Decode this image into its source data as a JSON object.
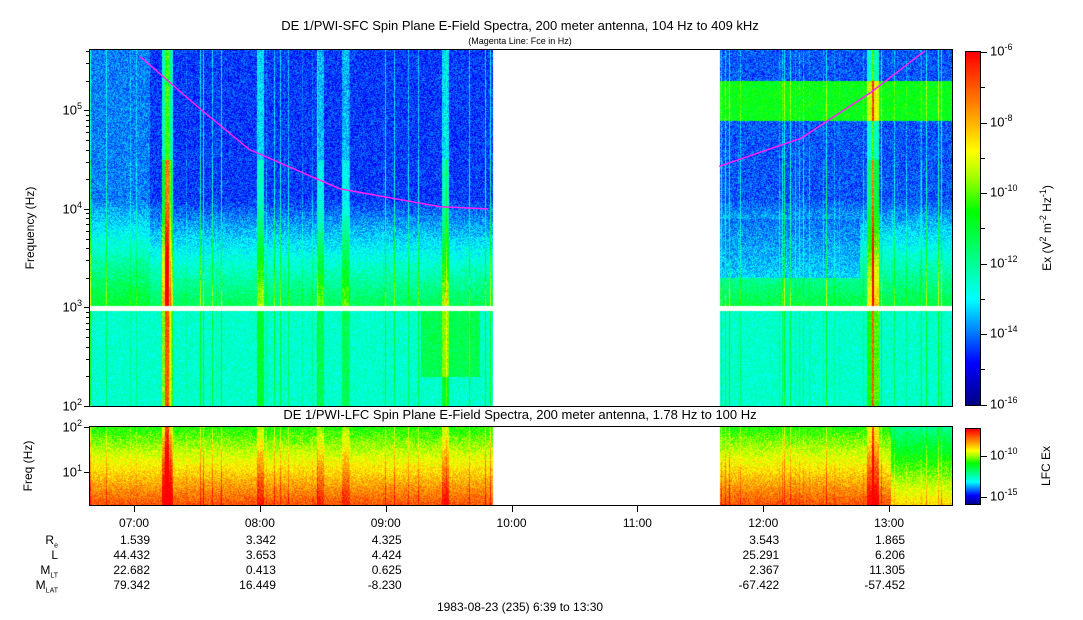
{
  "chart_data": [
    {
      "type": "heatmap",
      "title": "DE 1/PWI-SFC  Spin Plane E-Field Spectra, 200 meter antenna, 104 Hz to 409 kHz",
      "subtitle": "(Magenta Line: Fce in Hz)",
      "ylabel": "Frequency (Hz)",
      "yscale": "log",
      "ylim": [
        100,
        409000
      ],
      "yticks": [
        "10",
        "10",
        "10",
        "10"
      ],
      "ytick_exponents": [
        "2",
        "3",
        "4",
        "5"
      ],
      "xlim": [
        "06:39",
        "13:30"
      ],
      "data_gap": [
        "09:51",
        "11:39"
      ],
      "colorbar": {
        "label": "Ex (V",
        "label_parts": [
          "Ex (V",
          "2",
          " m",
          "-2",
          " Hz",
          "-1",
          ")"
        ],
        "range": [
          1e-16,
          1e-06
        ],
        "tick_exponents": [
          "-6",
          "-8",
          "-10",
          "-12",
          "-14",
          "-16"
        ],
        "scale": "log"
      },
      "fce_line": {
        "color": "#ff22ff",
        "segments": [
          [
            [
              "07:03",
              350000
            ],
            [
              "07:30",
              110000
            ],
            [
              "07:55",
              40000
            ],
            [
              "08:38",
              16000
            ],
            [
              "09:26",
              10500
            ],
            [
              "09:49",
              10000
            ]
          ],
          [
            [
              "11:39",
              27000
            ],
            [
              "12:18",
              52000
            ],
            [
              "12:51",
              150000
            ],
            [
              "13:17",
              400000
            ]
          ]
        ]
      }
    },
    {
      "type": "heatmap",
      "title": "DE 1/PWI-LFC  Spin Plane E-Field Spectra, 200 meter antenna, 1.78 Hz to 100 Hz",
      "ylabel": "Freq (Hz)",
      "yscale": "log",
      "ylim": [
        1.78,
        100
      ],
      "ytick_exponents": [
        "2",
        "1"
      ],
      "xlim": [
        "06:39",
        "13:30"
      ],
      "data_gap": [
        "09:51",
        "11:39"
      ],
      "colorbar": {
        "label": "LFC Ex",
        "tick_exponents": [
          "-10",
          "-15"
        ],
        "scale": "log"
      }
    }
  ],
  "x_axis": {
    "ticks": [
      "07:00",
      "08:00",
      "09:00",
      "10:00",
      "11:00",
      "12:00",
      "13:00"
    ],
    "caption": "1983-08-23 (235) 6:39 to 13:30"
  },
  "ephemeris": {
    "rows": [
      {
        "label": "R",
        "sub": "e",
        "values": [
          "1.539",
          "3.342",
          "4.325",
          "",
          "",
          "3.543",
          "1.865"
        ]
      },
      {
        "label": "L",
        "sub": "",
        "values": [
          "44.432",
          "3.653",
          "4.424",
          "",
          "",
          "25.291",
          "6.206"
        ]
      },
      {
        "label": "M",
        "sub": "LT",
        "values": [
          "22.682",
          "0.413",
          "0.625",
          "",
          "",
          "2.367",
          "11.305"
        ]
      },
      {
        "label": "M",
        "sub": "LAT",
        "values": [
          "79.342",
          "16.449",
          "-8.230",
          "",
          "",
          "-67.422",
          "-57.452"
        ]
      }
    ]
  },
  "ten": "10"
}
